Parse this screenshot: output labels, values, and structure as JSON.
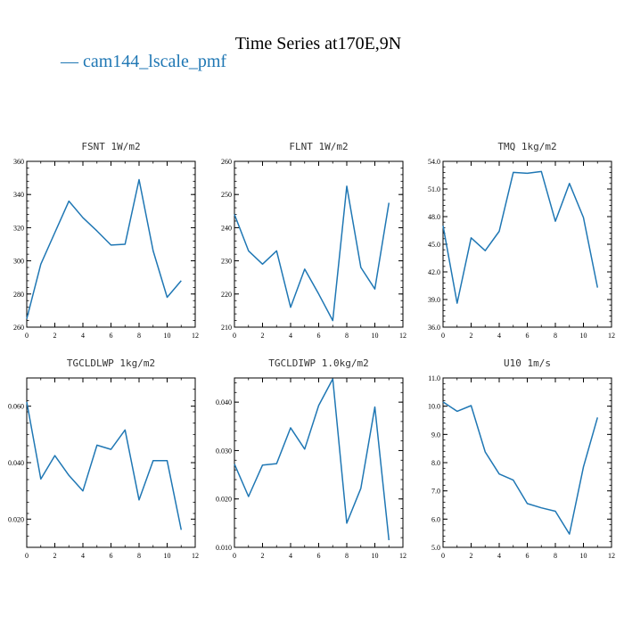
{
  "figure": {
    "title": "Time Series at170E,9N",
    "legend_label": "— cam144_lscale_pmf",
    "series_color": "#1f77b4"
  },
  "chart_data": [
    {
      "type": "line",
      "title": "FSNT  1W/m2",
      "x": [
        0,
        1,
        2,
        3,
        4,
        5,
        6,
        7,
        8,
        9,
        10,
        11
      ],
      "series": [
        {
          "name": "cam144_lscale_pmf",
          "values": [
            265,
            298,
            317,
            336,
            326,
            318,
            309.5,
            310,
            349,
            306,
            278,
            288
          ]
        }
      ],
      "xlim": [
        0,
        12
      ],
      "xticks": [
        0,
        2,
        4,
        6,
        8,
        10,
        12
      ],
      "ylim": [
        260,
        360
      ],
      "yticks": [
        260,
        280,
        300,
        320,
        340,
        360
      ],
      "ytick_labels": [
        "260",
        "280",
        "300",
        "320",
        "340",
        "360"
      ]
    },
    {
      "type": "line",
      "title": "FLNT  1W/m2",
      "x": [
        0,
        1,
        2,
        3,
        4,
        5,
        6,
        7,
        8,
        9,
        10,
        11
      ],
      "series": [
        {
          "name": "cam144_lscale_pmf",
          "values": [
            244,
            233,
            229,
            233,
            216,
            227.5,
            220,
            212,
            252.5,
            228,
            221.5,
            247.5
          ]
        }
      ],
      "xlim": [
        0,
        12
      ],
      "xticks": [
        0,
        2,
        4,
        6,
        8,
        10,
        12
      ],
      "ylim": [
        210,
        260
      ],
      "yticks": [
        210,
        220,
        230,
        240,
        250,
        260
      ],
      "ytick_labels": [
        "210",
        "220",
        "230",
        "240",
        "250",
        "260"
      ]
    },
    {
      "type": "line",
      "title": "TMQ  1kg/m2",
      "x": [
        0,
        1,
        2,
        3,
        4,
        5,
        6,
        7,
        8,
        9,
        10,
        11
      ],
      "series": [
        {
          "name": "cam144_lscale_pmf",
          "values": [
            47.0,
            38.6,
            45.7,
            44.3,
            46.4,
            52.8,
            52.7,
            52.9,
            47.5,
            51.6,
            47.9,
            40.3
          ]
        }
      ],
      "xlim": [
        0,
        12
      ],
      "xticks": [
        0,
        2,
        4,
        6,
        8,
        10,
        12
      ],
      "ylim": [
        36,
        54
      ],
      "yticks": [
        36,
        39,
        42,
        45,
        48,
        51,
        54
      ],
      "ytick_labels": [
        "36.0",
        "39.0",
        "42.0",
        "45.0",
        "48.0",
        "51.0",
        "54.0"
      ]
    },
    {
      "type": "line",
      "title": "TGCLDLWP  1kg/m2",
      "x": [
        0,
        1,
        2,
        3,
        4,
        5,
        6,
        7,
        8,
        9,
        10,
        11
      ],
      "series": [
        {
          "name": "cam144_lscale_pmf",
          "values": [
            0.0615,
            0.0342,
            0.0425,
            0.0355,
            0.03,
            0.0462,
            0.0447,
            0.0516,
            0.0268,
            0.0407,
            0.0407,
            0.0162
          ]
        }
      ],
      "xlim": [
        0,
        12
      ],
      "xticks": [
        0,
        2,
        4,
        6,
        8,
        10,
        12
      ],
      "ylim": [
        0.01,
        0.07
      ],
      "yticks": [
        0.02,
        0.04,
        0.06
      ],
      "ytick_labels": [
        "0.020",
        "0.040",
        "0.060"
      ]
    },
    {
      "type": "line",
      "title": "TGCLDIWP  1.0kg/m2",
      "x": [
        0,
        1,
        2,
        3,
        4,
        5,
        6,
        7,
        8,
        9,
        10,
        11
      ],
      "series": [
        {
          "name": "cam144_lscale_pmf",
          "values": [
            0.0272,
            0.0205,
            0.027,
            0.0273,
            0.0347,
            0.0303,
            0.0393,
            0.0448,
            0.015,
            0.0222,
            0.039,
            0.0115
          ]
        }
      ],
      "xlim": [
        0,
        12
      ],
      "xticks": [
        0,
        2,
        4,
        6,
        8,
        10,
        12
      ],
      "ylim": [
        0.01,
        0.045
      ],
      "yticks": [
        0.01,
        0.02,
        0.03,
        0.04
      ],
      "ytick_labels": [
        "0.010",
        "0.020",
        "0.030",
        "0.040"
      ]
    },
    {
      "type": "line",
      "title": "U10  1m/s",
      "x": [
        0,
        1,
        2,
        3,
        4,
        5,
        6,
        7,
        8,
        9,
        10,
        11
      ],
      "series": [
        {
          "name": "cam144_lscale_pmf",
          "values": [
            10.15,
            9.82,
            10.02,
            8.38,
            7.6,
            7.38,
            6.55,
            6.4,
            6.28,
            5.47,
            7.85,
            9.6
          ]
        }
      ],
      "xlim": [
        0,
        12
      ],
      "xticks": [
        0,
        2,
        4,
        6,
        8,
        10,
        12
      ],
      "ylim": [
        5,
        11
      ],
      "yticks": [
        5,
        6,
        7,
        8,
        9,
        10,
        11
      ],
      "ytick_labels": [
        "5.0",
        "6.0",
        "7.0",
        "8.0",
        "9.0",
        "10.0",
        "11.0"
      ]
    }
  ]
}
